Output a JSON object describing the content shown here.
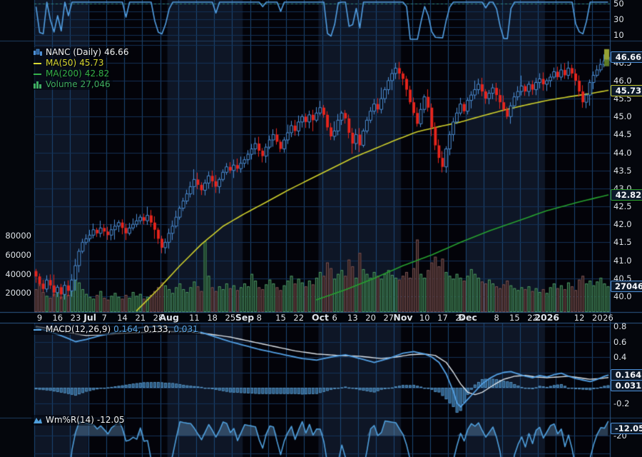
{
  "legend": {
    "symbol": "NANC (Daily)",
    "symbol_value": "46.66",
    "ma50_label": "MA(50)",
    "ma50_value": "45.73",
    "ma200_label": "MA(200)",
    "ma200_value": "42.82",
    "volume_label": "Volume",
    "volume_value": "27,046",
    "macd_label": "MACD(12,26,9)",
    "macd_v1": "0.164,",
    "macd_v2": "0.133,",
    "macd_v3": "0.031",
    "wmr_label": "Wm%R(14)",
    "wmr_value": "-12.05"
  },
  "axes": {
    "top_ticks": [
      {
        "l": "50",
        "v": 50
      },
      {
        "l": "30",
        "v": 30
      },
      {
        "l": "10",
        "v": 10
      }
    ],
    "price_ticks": [
      {
        "l": "46.5",
        "v": 46.5
      },
      {
        "l": "46.0",
        "v": 46.0
      },
      {
        "l": "45.5",
        "v": 45.5
      },
      {
        "l": "45.0",
        "v": 45.0
      },
      {
        "l": "44.5",
        "v": 44.5
      },
      {
        "l": "44.0",
        "v": 44.0
      },
      {
        "l": "43.5",
        "v": 43.5
      },
      {
        "l": "43.0",
        "v": 43.0
      },
      {
        "l": "42.5",
        "v": 42.5
      },
      {
        "l": "42.0",
        "v": 42.0
      },
      {
        "l": "41.5",
        "v": 41.5
      },
      {
        "l": "41.0",
        "v": 41.0
      },
      {
        "l": "40.5",
        "v": 40.5
      },
      {
        "l": "40.0",
        "v": 40.0
      }
    ],
    "volume_ticks": [
      {
        "l": "80000",
        "v": 80000
      },
      {
        "l": "60000",
        "v": 60000
      },
      {
        "l": "40000",
        "v": 40000
      },
      {
        "l": "20000",
        "v": 20000
      }
    ],
    "macd_ticks": [
      {
        "l": "0.8",
        "v": 0.8
      },
      {
        "l": "0.6",
        "v": 0.6
      },
      {
        "l": "0.4",
        "v": 0.4
      },
      {
        "l": "0.2",
        "v": 0.2
      },
      {
        "l": "0",
        "v": 0
      },
      {
        "l": "-0.2",
        "v": -0.2
      }
    ],
    "wmr_ticks": [
      {
        "l": "-20",
        "v": -20
      }
    ]
  },
  "badges": [
    {
      "name": "last-price-badge",
      "text": "46.66",
      "panel": "price",
      "v": 46.66,
      "color": "#4d8fd6"
    },
    {
      "name": "ma50-badge",
      "text": "45.73",
      "panel": "price",
      "v": 45.73,
      "color": "#c9c92a"
    },
    {
      "name": "ma200-badge",
      "text": "42.82",
      "panel": "price",
      "v": 42.82,
      "color": "#2ca02c"
    },
    {
      "name": "volume-badge",
      "text": "27046",
      "panel": "volume",
      "v": 27046,
      "color": "#4d8fd6"
    },
    {
      "name": "macd-badge",
      "text": "0.164",
      "panel": "macd",
      "v": 0.164,
      "color": "#4d8fd6"
    },
    {
      "name": "macd-hist-badge",
      "text": "0.031",
      "panel": "macd",
      "v": 0.031,
      "color": "#4d8fd6"
    },
    {
      "name": "wmr-badge",
      "text": "-12.05",
      "panel": "wmr",
      "v": -12.05,
      "color": "#4d8fd6"
    }
  ],
  "colors": {
    "up": "#4d8fd6",
    "down": "#e8251c",
    "ma50": "#cfd02c",
    "ma200": "#27a12f",
    "volume_up": "#4e9a66",
    "volume_down": "#7a5252",
    "macd_line": "#53a0e4",
    "signal_line": "#dfe5ea",
    "wmr": "#4f9fdc",
    "grid": "#1b4876",
    "grid_h": "#143156",
    "band_light": "#0e1626",
    "band_dark": "#030309",
    "marker": "#97a233"
  },
  "chart_data": {
    "type": "candlestick",
    "symbol": "NANC",
    "timeframe": "Daily",
    "last_price": 46.66,
    "ma50_last": 45.73,
    "ma200_last": 42.82,
    "volume_last": 27046,
    "macd_last": [
      0.164,
      0.133,
      0.031
    ],
    "wmr_last": -12.05,
    "price_range": [
      40.0,
      47.0
    ],
    "closes": [
      40.55,
      40.35,
      40.2,
      40.45,
      40.3,
      40.1,
      40.25,
      40.05,
      40.3,
      40.15,
      40.45,
      40.85,
      41.25,
      41.5,
      41.6,
      41.7,
      41.85,
      41.75,
      41.9,
      41.8,
      41.7,
      41.85,
      41.95,
      42.05,
      41.9,
      41.75,
      41.9,
      42.0,
      42.1,
      42.2,
      42.1,
      42.25,
      42.05,
      41.85,
      41.6,
      41.35,
      41.5,
      41.75,
      41.95,
      42.2,
      42.45,
      42.65,
      42.85,
      43.05,
      43.25,
      43.1,
      42.95,
      43.15,
      43.35,
      43.2,
      43.05,
      43.25,
      43.45,
      43.6,
      43.5,
      43.65,
      43.55,
      43.7,
      43.8,
      43.95,
      44.1,
      44.25,
      44.05,
      43.9,
      44.15,
      44.35,
      44.5,
      44.3,
      44.1,
      44.35,
      44.55,
      44.75,
      44.6,
      44.85,
      45.0,
      44.85,
      45.05,
      44.9,
      45.1,
      45.25,
      45.05,
      44.7,
      44.45,
      44.6,
      44.9,
      45.1,
      44.95,
      44.55,
      44.25,
      44.5,
      44.2,
      44.6,
      44.9,
      45.15,
      45.35,
      45.2,
      45.5,
      45.75,
      46.0,
      46.2,
      46.35,
      46.2,
      46.05,
      45.75,
      45.4,
      45.1,
      44.8,
      45.2,
      45.55,
      45.25,
      44.7,
      44.2,
      43.85,
      43.6,
      44.1,
      44.5,
      44.85,
      45.1,
      45.35,
      45.15,
      45.45,
      45.6,
      45.75,
      45.9,
      45.7,
      45.5,
      45.65,
      45.8,
      45.6,
      45.4,
      45.2,
      45.0,
      45.3,
      45.55,
      45.7,
      45.85,
      45.7,
      45.9,
      45.75,
      45.95,
      46.05,
      45.9,
      46.0,
      46.1,
      46.25,
      46.1,
      46.3,
      46.15,
      46.35,
      46.2,
      46.0,
      45.7,
      45.4,
      45.6,
      45.95,
      46.15,
      46.3,
      46.45,
      46.55,
      46.66
    ],
    "volumes": [
      24000,
      30000,
      21000,
      17000,
      15000,
      19000,
      25000,
      16000,
      21000,
      18000,
      27000,
      36000,
      31000,
      24000,
      19000,
      16000,
      14000,
      18000,
      22000,
      15000,
      13000,
      17000,
      20000,
      16000,
      14000,
      18000,
      15000,
      21000,
      17000,
      19000,
      14000,
      16000,
      18000,
      22000,
      26000,
      31000,
      28000,
      24000,
      20000,
      26000,
      30000,
      24000,
      21000,
      26000,
      32000,
      27000,
      22000,
      74000,
      38000,
      26000,
      22000,
      27000,
      24000,
      30000,
      25000,
      28000,
      23000,
      26000,
      30000,
      27000,
      40000,
      33000,
      26000,
      24000,
      29000,
      34000,
      30000,
      26000,
      23000,
      28000,
      33000,
      38000,
      30000,
      35000,
      31000,
      27000,
      33000,
      29000,
      36000,
      42000,
      38000,
      52000,
      46000,
      35000,
      40000,
      44000,
      38000,
      55000,
      48000,
      36000,
      62000,
      45000,
      40000,
      36000,
      42000,
      38000,
      35000,
      40000,
      44000,
      39000,
      36000,
      34000,
      38000,
      42000,
      36000,
      46000,
      76000,
      40000,
      36000,
      44000,
      52000,
      58000,
      48000,
      56000,
      42000,
      38000,
      35000,
      40000,
      36000,
      33000,
      38000,
      45000,
      40000,
      36000,
      32000,
      30000,
      34000,
      30000,
      27000,
      25000,
      29000,
      33000,
      28000,
      25000,
      23000,
      26000,
      24000,
      27000,
      22000,
      25000,
      21000,
      24000,
      20000,
      26000,
      30000,
      25000,
      28000,
      24000,
      31000,
      27000,
      23000,
      34000,
      38000,
      30000,
      33000,
      28000,
      32000,
      36000,
      30000,
      27046
    ],
    "ma50_anchors": [
      [
        28,
        39.6
      ],
      [
        34,
        40.2
      ],
      [
        40,
        40.85
      ],
      [
        46,
        41.45
      ],
      [
        52,
        41.95
      ],
      [
        58,
        42.3
      ],
      [
        64,
        42.62
      ],
      [
        70,
        42.95
      ],
      [
        76,
        43.25
      ],
      [
        82,
        43.55
      ],
      [
        88,
        43.85
      ],
      [
        94,
        44.1
      ],
      [
        100,
        44.35
      ],
      [
        106,
        44.58
      ],
      [
        112,
        44.72
      ],
      [
        118,
        44.85
      ],
      [
        124,
        45.02
      ],
      [
        130,
        45.18
      ],
      [
        136,
        45.32
      ],
      [
        142,
        45.45
      ],
      [
        148,
        45.55
      ],
      [
        154,
        45.64
      ],
      [
        159,
        45.73
      ]
    ],
    "ma200_anchors": [
      [
        78,
        39.9
      ],
      [
        86,
        40.18
      ],
      [
        94,
        40.5
      ],
      [
        102,
        40.85
      ],
      [
        110,
        41.15
      ],
      [
        118,
        41.5
      ],
      [
        126,
        41.82
      ],
      [
        134,
        42.1
      ],
      [
        142,
        42.38
      ],
      [
        150,
        42.6
      ],
      [
        159,
        42.82
      ]
    ],
    "macd_anchors": [
      [
        0,
        0.78
      ],
      [
        4,
        0.73
      ],
      [
        8,
        0.66
      ],
      [
        11,
        0.6
      ],
      [
        14,
        0.63
      ],
      [
        18,
        0.68
      ],
      [
        22,
        0.72
      ],
      [
        26,
        0.76
      ],
      [
        30,
        0.79
      ],
      [
        34,
        0.8
      ],
      [
        38,
        0.79
      ],
      [
        42,
        0.76
      ],
      [
        46,
        0.72
      ],
      [
        50,
        0.66
      ],
      [
        54,
        0.6
      ],
      [
        58,
        0.55
      ],
      [
        62,
        0.5
      ],
      [
        66,
        0.46
      ],
      [
        70,
        0.42
      ],
      [
        74,
        0.38
      ],
      [
        78,
        0.36
      ],
      [
        82,
        0.4
      ],
      [
        86,
        0.43
      ],
      [
        90,
        0.38
      ],
      [
        94,
        0.33
      ],
      [
        98,
        0.38
      ],
      [
        102,
        0.45
      ],
      [
        105,
        0.47
      ],
      [
        108,
        0.44
      ],
      [
        110,
        0.4
      ],
      [
        112,
        0.33
      ],
      [
        114,
        0.18
      ],
      [
        116,
        -0.05
      ],
      [
        117,
        -0.2
      ],
      [
        118,
        -0.25
      ],
      [
        120,
        -0.15
      ],
      [
        122,
        -0.05
      ],
      [
        124,
        0.05
      ],
      [
        126,
        0.12
      ],
      [
        128,
        0.17
      ],
      [
        130,
        0.2
      ],
      [
        132,
        0.21
      ],
      [
        134,
        0.18
      ],
      [
        136,
        0.15
      ],
      [
        138,
        0.13
      ],
      [
        140,
        0.16
      ],
      [
        142,
        0.14
      ],
      [
        144,
        0.17
      ],
      [
        146,
        0.19
      ],
      [
        148,
        0.15
      ],
      [
        150,
        0.12
      ],
      [
        152,
        0.1
      ],
      [
        154,
        0.08
      ],
      [
        156,
        0.11
      ],
      [
        158,
        0.15
      ],
      [
        159,
        0.164
      ]
    ],
    "signal_anchors": [
      [
        0,
        0.8
      ],
      [
        5,
        0.76
      ],
      [
        10,
        0.71
      ],
      [
        14,
        0.68
      ],
      [
        18,
        0.69
      ],
      [
        24,
        0.71
      ],
      [
        30,
        0.72
      ],
      [
        36,
        0.73
      ],
      [
        42,
        0.73
      ],
      [
        48,
        0.7
      ],
      [
        54,
        0.66
      ],
      [
        60,
        0.6
      ],
      [
        66,
        0.54
      ],
      [
        72,
        0.48
      ],
      [
        78,
        0.44
      ],
      [
        84,
        0.42
      ],
      [
        90,
        0.41
      ],
      [
        96,
        0.38
      ],
      [
        100,
        0.4
      ],
      [
        104,
        0.43
      ],
      [
        108,
        0.44
      ],
      [
        111,
        0.42
      ],
      [
        114,
        0.33
      ],
      [
        116,
        0.2
      ],
      [
        118,
        0.05
      ],
      [
        120,
        -0.06
      ],
      [
        122,
        -0.09
      ],
      [
        124,
        -0.06
      ],
      [
        126,
        0.0
      ],
      [
        128,
        0.06
      ],
      [
        130,
        0.11
      ],
      [
        133,
        0.15
      ],
      [
        136,
        0.16
      ],
      [
        139,
        0.14
      ],
      [
        142,
        0.13
      ],
      [
        145,
        0.14
      ],
      [
        148,
        0.15
      ],
      [
        151,
        0.13
      ],
      [
        154,
        0.11
      ],
      [
        157,
        0.12
      ],
      [
        159,
        0.133
      ]
    ],
    "month_band_bars": [
      0,
      15,
      37,
      58,
      79,
      102,
      120,
      142,
      160
    ],
    "x_labels": [
      {
        "t": "9",
        "b": 1
      },
      {
        "t": "16",
        "b": 6
      },
      {
        "t": "23",
        "b": 11
      },
      {
        "t": "Jul",
        "b": 15,
        "m": true
      },
      {
        "t": "7",
        "b": 19
      },
      {
        "t": "14",
        "b": 24
      },
      {
        "t": "21",
        "b": 29
      },
      {
        "t": "28",
        "b": 34
      },
      {
        "t": "Aug",
        "b": 37,
        "m": true
      },
      {
        "t": "11",
        "b": 44
      },
      {
        "t": "18",
        "b": 49
      },
      {
        "t": "25",
        "b": 54
      },
      {
        "t": "Sep",
        "b": 58,
        "m": true
      },
      {
        "t": "8",
        "b": 62
      },
      {
        "t": "15",
        "b": 68
      },
      {
        "t": "22",
        "b": 73
      },
      {
        "t": "Oct",
        "b": 79,
        "m": true
      },
      {
        "t": "6",
        "b": 83
      },
      {
        "t": "13",
        "b": 88
      },
      {
        "t": "20",
        "b": 93
      },
      {
        "t": "27",
        "b": 98
      },
      {
        "t": "Nov",
        "b": 102,
        "m": true
      },
      {
        "t": "10",
        "b": 108
      },
      {
        "t": "17",
        "b": 113
      },
      {
        "t": "24",
        "b": 118
      },
      {
        "t": "Dec",
        "b": 120,
        "m": true
      },
      {
        "t": "8",
        "b": 128
      },
      {
        "t": "15",
        "b": 133
      },
      {
        "t": "22",
        "b": 138
      },
      {
        "t": "2026",
        "b": 142,
        "m": true
      },
      {
        "t": "12",
        "b": 151
      },
      {
        "t": "20",
        "b": 156
      },
      {
        "t": "26",
        "b": 159
      }
    ]
  }
}
